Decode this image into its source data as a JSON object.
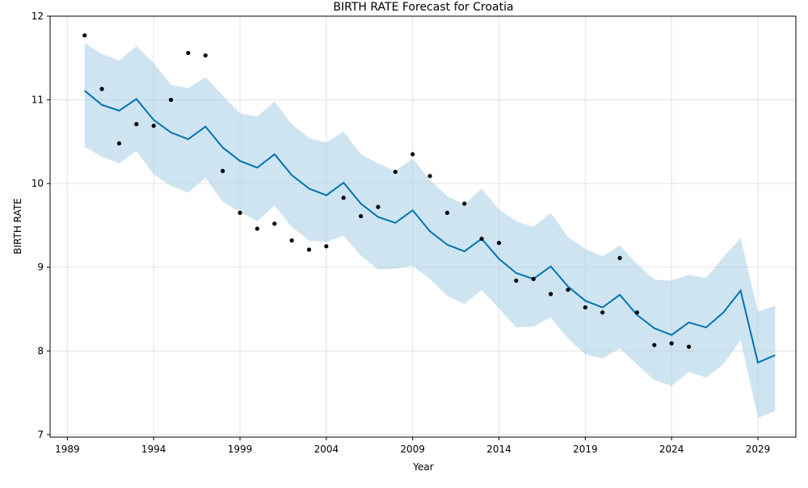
{
  "chart_data": {
    "type": "line",
    "title": "BIRTH RATE Forecast for Croatia",
    "xlabel": "Year",
    "ylabel": "BIRTH RATE",
    "xlim": [
      1988,
      2031.2
    ],
    "ylim": [
      6.97,
      12.0
    ],
    "x_ticks": [
      1989,
      1994,
      1999,
      2004,
      2009,
      2014,
      2019,
      2024,
      2029
    ],
    "y_ticks": [
      7,
      8,
      9,
      10,
      11,
      12
    ],
    "grid": true,
    "colors": {
      "forecast": "#0072B2",
      "band": "#A6CEE3",
      "actual": "#000000"
    },
    "series": [
      {
        "kind": "actual",
        "x": [
          1990,
          1991,
          1992,
          1993,
          1994,
          1995,
          1996,
          1997,
          1998,
          1999,
          2000,
          2001,
          2002,
          2003,
          2004,
          2005,
          2006,
          2007,
          2008,
          2009,
          2010,
          2011,
          2012,
          2013,
          2014,
          2015,
          2016,
          2017,
          2018,
          2019,
          2020,
          2021,
          2022,
          2023,
          2024,
          2025
        ],
        "values": [
          11.77,
          11.13,
          10.48,
          10.71,
          10.69,
          11.0,
          11.56,
          11.53,
          10.15,
          9.65,
          9.46,
          9.52,
          9.32,
          9.21,
          9.25,
          9.83,
          9.61,
          9.72,
          10.14,
          10.35,
          10.09,
          9.65,
          9.76,
          9.34,
          9.29,
          8.84,
          8.86,
          8.68,
          8.73,
          8.52,
          8.46,
          9.11,
          8.46,
          8.07,
          8.09,
          8.05
        ]
      },
      {
        "kind": "forecast",
        "x": [
          1990,
          1991,
          1992,
          1993,
          1994,
          1995,
          1996,
          1997,
          1998,
          1999,
          2000,
          2001,
          2002,
          2003,
          2004,
          2005,
          2006,
          2007,
          2008,
          2009,
          2010,
          2011,
          2012,
          2013,
          2014,
          2015,
          2016,
          2017,
          2018,
          2019,
          2020,
          2021,
          2022,
          2023,
          2024,
          2025,
          2026,
          2027,
          2028,
          2029,
          2030
        ],
        "values": [
          11.11,
          10.94,
          10.87,
          11.01,
          10.76,
          10.61,
          10.53,
          10.68,
          10.43,
          10.27,
          10.19,
          10.35,
          10.1,
          9.94,
          9.86,
          10.01,
          9.76,
          9.6,
          9.53,
          9.68,
          9.43,
          9.27,
          9.19,
          9.34,
          9.1,
          8.93,
          8.86,
          9.01,
          8.77,
          8.6,
          8.52,
          8.67,
          8.43,
          8.27,
          8.19,
          8.34,
          8.28,
          8.46,
          8.72,
          7.86,
          7.95
        ],
        "lower": [
          10.44,
          10.32,
          10.24,
          10.39,
          10.11,
          9.97,
          9.89,
          10.07,
          9.78,
          9.66,
          9.55,
          9.74,
          9.48,
          9.32,
          9.3,
          9.38,
          9.14,
          8.97,
          8.98,
          9.02,
          8.86,
          8.66,
          8.56,
          8.73,
          8.51,
          8.28,
          8.29,
          8.4,
          8.15,
          7.96,
          7.91,
          8.03,
          7.84,
          7.65,
          7.58,
          7.75,
          7.68,
          7.84,
          8.13,
          7.2,
          7.28
        ],
        "upper": [
          11.68,
          11.55,
          11.47,
          11.64,
          11.44,
          11.18,
          11.14,
          11.27,
          11.05,
          10.84,
          10.8,
          10.98,
          10.71,
          10.54,
          10.49,
          10.62,
          10.35,
          10.24,
          10.15,
          10.3,
          10.04,
          9.85,
          9.75,
          9.94,
          9.69,
          9.55,
          9.48,
          9.65,
          9.36,
          9.22,
          9.13,
          9.26,
          9.04,
          8.85,
          8.84,
          8.91,
          8.87,
          9.12,
          9.35,
          8.47,
          8.54
        ]
      }
    ]
  }
}
